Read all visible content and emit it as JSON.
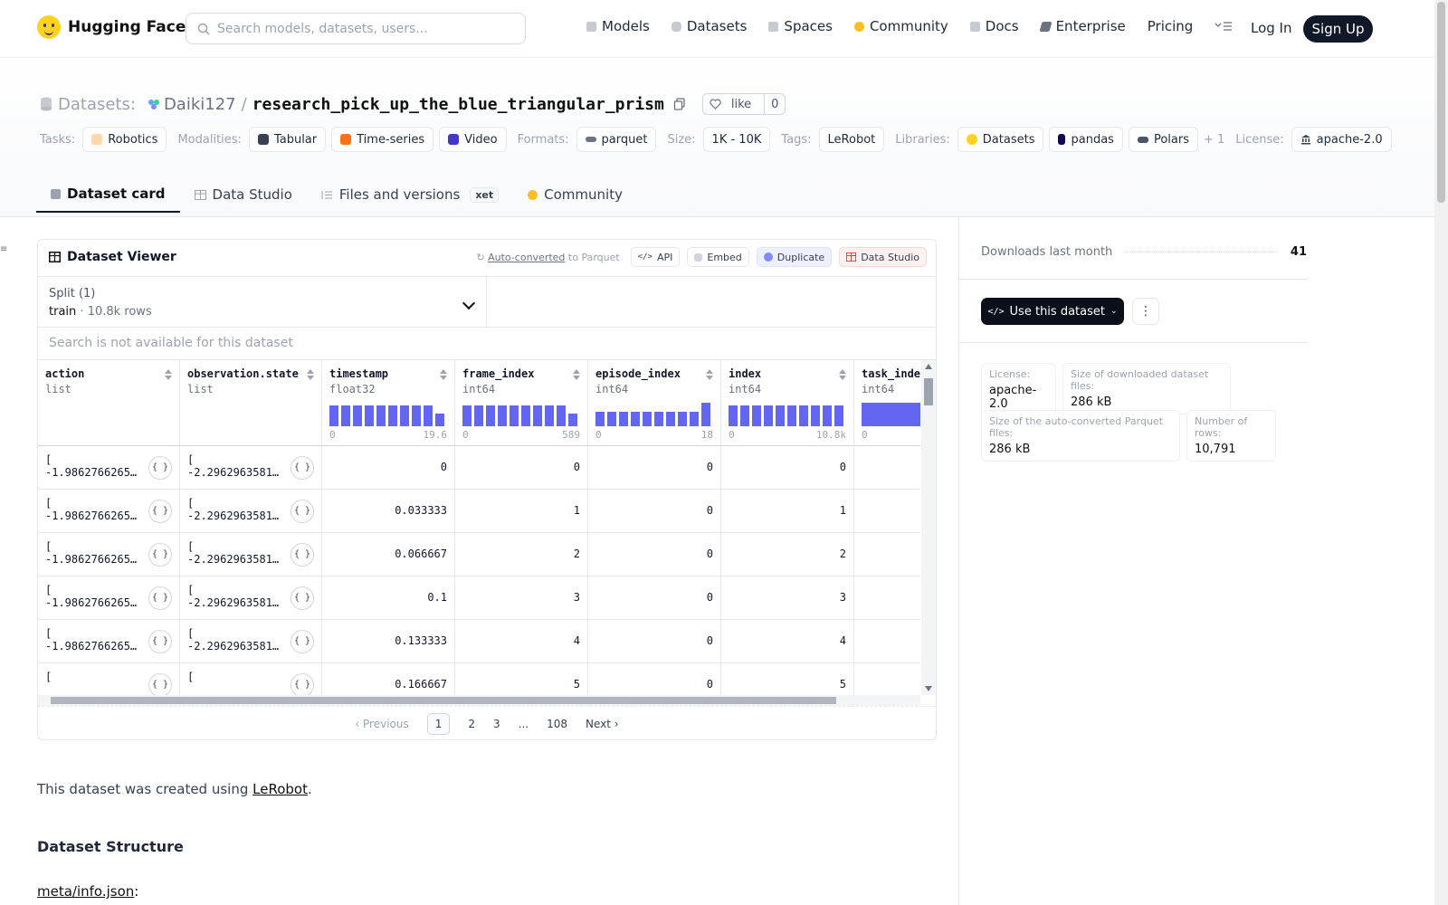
{
  "nav": {
    "brand": "Hugging Face",
    "search_placeholder": "Search models, datasets, users...",
    "items": [
      {
        "label": "Models",
        "icon": "cube-icon",
        "color": "#9ca3af"
      },
      {
        "label": "Datasets",
        "icon": "database-icon",
        "color": "#9ca3af"
      },
      {
        "label": "Spaces",
        "icon": "grid-icon",
        "color": "#9ca3af"
      },
      {
        "label": "Community",
        "icon": "hand-icon",
        "color": "#fbbf24"
      },
      {
        "label": "Docs",
        "icon": "book-icon",
        "color": "#9ca3af"
      },
      {
        "label": "Enterprise",
        "icon": "tag-icon",
        "color": "#6b7280"
      },
      {
        "label": "Pricing",
        "icon": "",
        "color": ""
      }
    ],
    "login": "Log In",
    "signup": "Sign Up"
  },
  "header": {
    "section_label": "Datasets:",
    "owner": "Daiki127",
    "separator": "/",
    "repo": "research_pick_up_the_blue_triangular_prism",
    "like_label": "like",
    "like_count": "0"
  },
  "tags": {
    "tasks_label": "Tasks:",
    "tasks": [
      "Robotics"
    ],
    "modalities_label": "Modalities:",
    "modalities": [
      "Tabular",
      "Time-series",
      "Video"
    ],
    "formats_label": "Formats:",
    "formats": [
      "parquet"
    ],
    "size_label": "Size:",
    "size": "1K - 10K",
    "tags_label": "Tags:",
    "tags": [
      "LeRobot"
    ],
    "libraries_label": "Libraries:",
    "libraries": [
      "Datasets",
      "pandas",
      "Polars"
    ],
    "more": "+ 1",
    "license_label": "License:",
    "license": "apache-2.0"
  },
  "tabs": [
    {
      "label": "Dataset card",
      "active": true
    },
    {
      "label": "Data Studio",
      "active": false
    },
    {
      "label": "Files and versions",
      "active": false,
      "badge": "xet"
    },
    {
      "label": "Community",
      "active": false
    }
  ],
  "viewer": {
    "title": "Dataset Viewer",
    "autoconverted_link": "Auto-converted",
    "autoconverted_suffix": "to Parquet",
    "btn_api": "API",
    "btn_embed": "Embed",
    "btn_duplicate": "Duplicate",
    "btn_datastudio": "Data Studio",
    "split_label": "Split (1)",
    "split_name": "train",
    "split_sep": "·",
    "split_rows": "10.8k rows",
    "search_na": "Search is not available for this dataset",
    "columns": [
      {
        "name": "action",
        "type": "list"
      },
      {
        "name": "observation.state",
        "type": "list"
      },
      {
        "name": "timestamp",
        "type": "float32",
        "min": "0",
        "max": "19.6",
        "hist": [
          0.9,
          0.9,
          0.9,
          0.9,
          0.9,
          0.9,
          0.9,
          0.9,
          0.9,
          0.55
        ]
      },
      {
        "name": "frame_index",
        "type": "int64",
        "min": "0",
        "max": "589",
        "hist": [
          0.9,
          0.9,
          0.9,
          0.9,
          0.9,
          0.9,
          0.9,
          0.9,
          0.9,
          0.55
        ]
      },
      {
        "name": "episode_index",
        "type": "int64",
        "min": "0",
        "max": "18",
        "hist": [
          0.6,
          0.6,
          0.6,
          0.6,
          0.6,
          0.6,
          0.6,
          0.6,
          0.6,
          1.0
        ]
      },
      {
        "name": "index",
        "type": "int64",
        "min": "0",
        "max": "10.8k",
        "hist": [
          0.9,
          0.9,
          0.9,
          0.9,
          0.9,
          0.9,
          0.9,
          0.9,
          0.9,
          0.9
        ]
      },
      {
        "name": "task_index",
        "type": "int64",
        "min": "0",
        "max": "",
        "hist": [
          1.0
        ]
      }
    ],
    "rows": [
      {
        "action": "-1.9862766265…",
        "state": "-2.2962963581…",
        "timestamp": "0",
        "frame_index": "0",
        "episode_index": "0",
        "index": "0"
      },
      {
        "action": "-1.9862766265…",
        "state": "-2.2962963581…",
        "timestamp": "0.033333",
        "frame_index": "1",
        "episode_index": "0",
        "index": "1"
      },
      {
        "action": "-1.9862766265…",
        "state": "-2.2962963581…",
        "timestamp": "0.066667",
        "frame_index": "2",
        "episode_index": "0",
        "index": "2"
      },
      {
        "action": "-1.9862766265…",
        "state": "-2.2962963581…",
        "timestamp": "0.1",
        "frame_index": "3",
        "episode_index": "0",
        "index": "3"
      },
      {
        "action": "-1.9862766265…",
        "state": "-2.2962963581…",
        "timestamp": "0.133333",
        "frame_index": "4",
        "episode_index": "0",
        "index": "4"
      },
      {
        "action": "",
        "state": "",
        "timestamp": "0.166667",
        "frame_index": "5",
        "episode_index": "0",
        "index": "5"
      }
    ],
    "list_open": "[",
    "json_icon": "{ }",
    "pager": {
      "prev": "Previous",
      "pages": [
        "1",
        "2",
        "3",
        "...",
        "108"
      ],
      "next": "Next"
    }
  },
  "card": {
    "desc_prefix": "This dataset was created using ",
    "desc_link": "LeRobot",
    "desc_suffix": ".",
    "section_title": "Dataset Structure",
    "meta_link": "meta/info.json",
    "meta_suffix": ":"
  },
  "sidebar": {
    "downloads_label": "Downloads last month",
    "downloads_value": "41",
    "use_button": "Use this dataset",
    "more_icon": "⋮",
    "stats": [
      {
        "k": "License:",
        "v": "apache-2.0"
      },
      {
        "k": "Size of downloaded dataset files:",
        "v": "286 kB"
      },
      {
        "k": "Size of the auto-converted Parquet files:",
        "v": "286 kB"
      },
      {
        "k": "Number of rows:",
        "v": "10,791"
      }
    ]
  }
}
